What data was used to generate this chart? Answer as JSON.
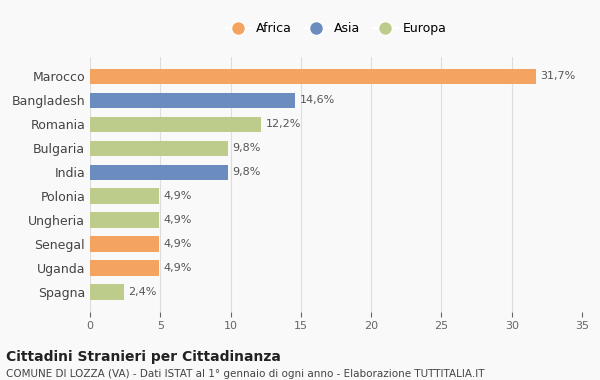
{
  "categories": [
    "Marocco",
    "Bangladesh",
    "Romania",
    "Bulgaria",
    "India",
    "Polonia",
    "Ungheria",
    "Senegal",
    "Uganda",
    "Spagna"
  ],
  "values": [
    31.7,
    14.6,
    12.2,
    9.8,
    9.8,
    4.9,
    4.9,
    4.9,
    4.9,
    2.4
  ],
  "labels": [
    "31,7%",
    "14,6%",
    "12,2%",
    "9,8%",
    "9,8%",
    "4,9%",
    "4,9%",
    "4,9%",
    "4,9%",
    "2,4%"
  ],
  "continents": [
    "Africa",
    "Asia",
    "Europa",
    "Europa",
    "Asia",
    "Europa",
    "Europa",
    "Africa",
    "Africa",
    "Europa"
  ],
  "colors": {
    "Africa": "#F4A460",
    "Asia": "#6B8CBE",
    "Europa": "#BDCC8B"
  },
  "xlim": [
    0,
    35
  ],
  "xticks": [
    0,
    5,
    10,
    15,
    20,
    25,
    30,
    35
  ],
  "title": "Cittadini Stranieri per Cittadinanza",
  "subtitle": "COMUNE DI LOZZA (VA) - Dati ISTAT al 1° gennaio di ogni anno - Elaborazione TUTTITALIA.IT",
  "background_color": "#f9f9f9",
  "grid_color": "#dddddd"
}
